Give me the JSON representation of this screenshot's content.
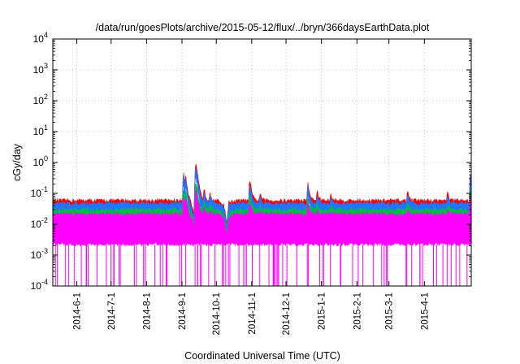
{
  "chart_data": {
    "type": "line",
    "title": "/data/run/goesPlots/archive/2015-05-12/flux/../bryn/366daysEarthData.plot",
    "xlabel": "Coordinated Universal Time (UTC)",
    "ylabel": "cGy/day",
    "yscale": "log",
    "ylim": [
      0.0001,
      10000
    ],
    "xlim": [
      "2014-05-11",
      "2015-05-12"
    ],
    "grid": true,
    "yticks": [
      {
        "value": 0.0001,
        "base": "10",
        "exp": "-4"
      },
      {
        "value": 0.001,
        "base": "10",
        "exp": "-3"
      },
      {
        "value": 0.01,
        "base": "10",
        "exp": "-2"
      },
      {
        "value": 0.1,
        "base": "10",
        "exp": "-1"
      },
      {
        "value": 1,
        "base": "10",
        "exp": "0"
      },
      {
        "value": 10,
        "base": "10",
        "exp": "1"
      },
      {
        "value": 100,
        "base": "10",
        "exp": "2"
      },
      {
        "value": 1000,
        "base": "10",
        "exp": "3"
      },
      {
        "value": 10000,
        "base": "10",
        "exp": "4"
      }
    ],
    "xticks": [
      "2014-6-1",
      "2014-7-1",
      "2014-8-1",
      "2014-9-1",
      "2014-10-1",
      "2014-11-1",
      "2014-12-1",
      "2015-1-1",
      "2015-2-1",
      "2015-3-1",
      "2015-4-1"
    ],
    "series": [
      {
        "color": "#ff0000",
        "baseline": 0.05,
        "spike_factor": 1.0
      },
      {
        "color": "#1f77ff",
        "baseline": 0.04,
        "spike_factor": 0.95
      },
      {
        "color": "#00bb44",
        "baseline": 0.025,
        "spike_factor": 0.55
      },
      {
        "color": "#ff00ff",
        "baseline": 0.018,
        "floor": 0.0022,
        "spike_factor": 0.4
      }
    ],
    "events": [
      {
        "date": "2014-09-02",
        "value": 0.65
      },
      {
        "date": "2014-09-04",
        "value": 0.45
      },
      {
        "date": "2014-09-12",
        "value": 3.2
      },
      {
        "date": "2014-09-13",
        "value": 1.8
      },
      {
        "date": "2014-09-20",
        "value": 0.15
      },
      {
        "date": "2014-09-25",
        "value": 0.12
      },
      {
        "date": "2014-10-12",
        "value": 0.08
      },
      {
        "date": "2014-10-30",
        "value": 0.3
      },
      {
        "date": "2014-11-08",
        "value": 0.09
      },
      {
        "date": "2014-12-20",
        "value": 0.2
      },
      {
        "date": "2014-12-28",
        "value": 0.12
      },
      {
        "date": "2015-01-09",
        "value": 0.08
      },
      {
        "date": "2015-03-17",
        "value": 0.12
      },
      {
        "date": "2015-04-21",
        "value": 0.1
      },
      {
        "date": "2015-05-11",
        "value": 0.55
      }
    ],
    "dips": [
      {
        "date": "2014-09-12",
        "value": 0.004
      },
      {
        "date": "2014-10-10",
        "value": 0.006
      }
    ]
  }
}
